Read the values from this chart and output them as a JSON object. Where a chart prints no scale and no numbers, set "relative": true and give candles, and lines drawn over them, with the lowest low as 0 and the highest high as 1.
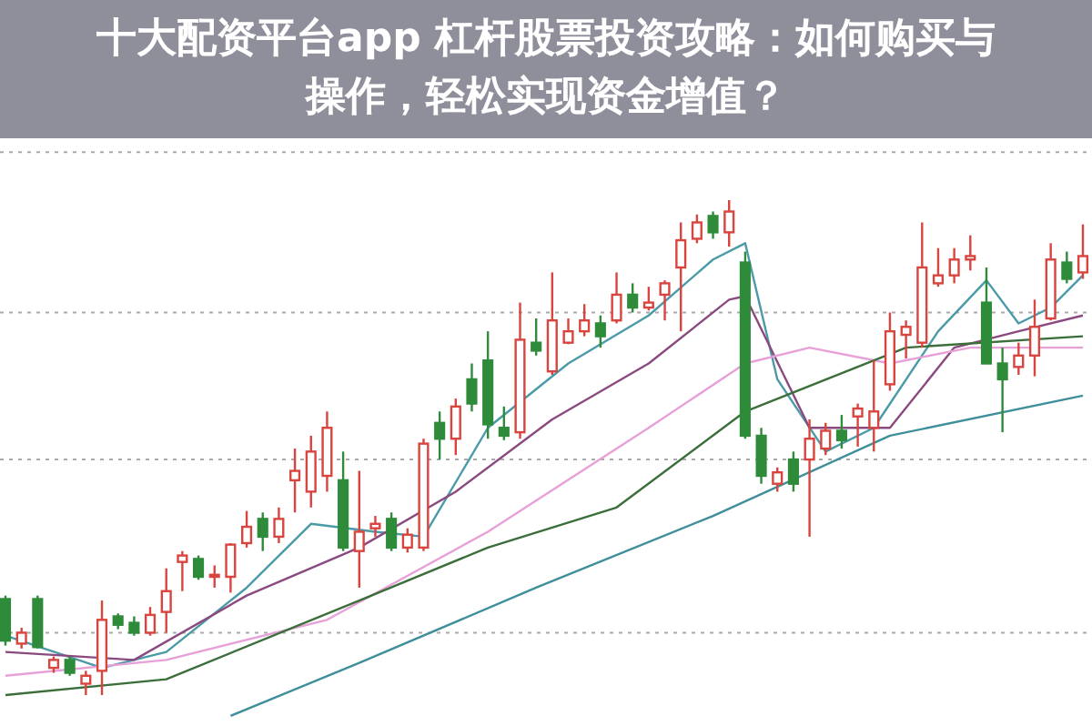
{
  "chart_data": {
    "type": "candlestick",
    "relative": true,
    "title": "十大配资平台app 杠杆股票投资攻略：如何购买与操作，轻松实现资金增值？",
    "categories": [
      null,
      null,
      null,
      null,
      null,
      null,
      null,
      null,
      null,
      null,
      null,
      null,
      null,
      null,
      null,
      null,
      null,
      null,
      null,
      null,
      null,
      null,
      null,
      null,
      null,
      null,
      null,
      null,
      null,
      null,
      null,
      null,
      null,
      null,
      null,
      null,
      null,
      null,
      null,
      null,
      null,
      null,
      null,
      null,
      null,
      null,
      null,
      null,
      null,
      null,
      null,
      null,
      null,
      null,
      null,
      null,
      null,
      null,
      null,
      null,
      null,
      null,
      null,
      null,
      null,
      null,
      null,
      null
    ],
    "ohlc": [
      [
        0.194,
        0.201,
        0.1,
        0.11
      ],
      [
        0.104,
        0.136,
        0.094,
        0.126
      ],
      [
        0.194,
        0.201,
        0.094,
        0.097
      ],
      [
        0.055,
        0.078,
        0.045,
        0.071
      ],
      [
        0.071,
        0.078,
        0.039,
        0.045
      ],
      [
        0.023,
        0.049,
        0,
        0.039
      ],
      [
        0.049,
        0.191,
        0,
        0.152
      ],
      [
        0.159,
        0.165,
        0.133,
        0.142
      ],
      [
        0.146,
        0.159,
        0.12,
        0.126
      ],
      [
        0.126,
        0.178,
        0.12,
        0.162
      ],
      [
        0.168,
        0.256,
        0.126,
        0.21
      ],
      [
        0.269,
        0.291,
        0.21,
        0.282
      ],
      [
        0.275,
        0.282,
        0.233,
        0.239
      ],
      [
        0.239,
        0.262,
        0.217,
        0.243
      ],
      [
        0.239,
        0.307,
        0.207,
        0.304
      ],
      [
        0.307,
        0.372,
        0.298,
        0.34
      ],
      [
        0.356,
        0.369,
        0.291,
        0.32
      ],
      [
        0.32,
        0.379,
        0.307,
        0.356
      ],
      [
        0.434,
        0.498,
        0.369,
        0.453
      ],
      [
        0.411,
        0.524,
        0.379,
        0.492
      ],
      [
        0.443,
        0.573,
        0.411,
        0.54
      ],
      [
        0.434,
        0.492,
        0.291,
        0.298
      ],
      [
        0.291,
        0.453,
        0.217,
        0.33
      ],
      [
        0.337,
        0.362,
        0.32,
        0.346
      ],
      [
        0.356,
        0.369,
        0.291,
        0.298
      ],
      [
        0.298,
        0.337,
        0.288,
        0.324
      ],
      [
        0.298,
        0.518,
        0.291,
        0.508
      ],
      [
        0.55,
        0.573,
        0.476,
        0.518
      ],
      [
        0.518,
        0.599,
        0.485,
        0.583
      ],
      [
        0.638,
        0.67,
        0.573,
        0.589
      ],
      [
        0.676,
        0.735,
        0.518,
        0.547
      ],
      [
        0.54,
        0.583,
        0.515,
        0.524
      ],
      [
        0.531,
        0.793,
        0.518,
        0.718
      ],
      [
        0.712,
        0.761,
        0.686,
        0.696
      ],
      [
        0.654,
        0.854,
        0.647,
        0.757
      ],
      [
        0.712,
        0.761,
        0.709,
        0.735
      ],
      [
        0.735,
        0.79,
        0.725,
        0.757
      ],
      [
        0.751,
        0.767,
        0.702,
        0.725
      ],
      [
        0.757,
        0.854,
        0.751,
        0.809
      ],
      [
        0.809,
        0.832,
        0.773,
        0.783
      ],
      [
        0.783,
        0.825,
        0.777,
        0.793
      ],
      [
        0.809,
        0.838,
        0.757,
        0.832
      ],
      [
        0.864,
        0.955,
        0.735,
        0.919
      ],
      [
        0.922,
        0.971,
        0.913,
        0.955
      ],
      [
        0.968,
        0.977,
        0.922,
        0.935
      ],
      [
        0.935,
        1,
        0.906,
        0.977
      ],
      [
        0.874,
        0.896,
        0.518,
        0.524
      ],
      [
        0.524,
        0.54,
        0.427,
        0.443
      ],
      [
        0.427,
        0.46,
        0.411,
        0.45
      ],
      [
        0.476,
        0.492,
        0.411,
        0.427
      ],
      [
        0.476,
        0.557,
        0.32,
        0.518
      ],
      [
        0.498,
        0.55,
        0.485,
        0.534
      ],
      [
        0.534,
        0.566,
        0.498,
        0.515
      ],
      [
        0.563,
        0.589,
        0.502,
        0.579
      ],
      [
        0.54,
        0.676,
        0.492,
        0.573
      ],
      [
        0.628,
        0.773,
        0.615,
        0.735
      ],
      [
        0.728,
        0.757,
        0.68,
        0.744
      ],
      [
        0.712,
        0.955,
        0.702,
        0.864
      ],
      [
        0.832,
        0.903,
        0.825,
        0.848
      ],
      [
        0.848,
        0.903,
        0.832,
        0.88
      ],
      [
        0.88,
        0.929,
        0.858,
        0.887
      ],
      [
        0.793,
        0.864,
        0.67,
        0.67
      ],
      [
        0.67,
        0.702,
        0.531,
        0.638
      ],
      [
        0.663,
        0.712,
        0.647,
        0.686
      ],
      [
        0.686,
        0.799,
        0.644,
        0.744
      ],
      [
        0.761,
        0.913,
        0.757,
        0.88
      ],
      [
        0.874,
        0.896,
        0.832,
        0.841
      ],
      [
        0.854,
        0.951,
        0.841,
        0.887
      ]
    ],
    "series": [
      {
        "type": "line",
        "color": "#4a9aa8",
        "values": [
          0.12,
          null,
          null,
          null,
          null,
          null,
          0.055,
          null,
          null,
          null,
          0.087,
          null,
          null,
          null,
          null,
          0.217,
          null,
          null,
          null,
          0.346,
          null,
          null,
          null,
          0.33,
          null,
          null,
          0.32,
          null,
          null,
          null,
          0.54,
          null,
          null,
          null,
          null,
          0.67,
          null,
          null,
          null,
          null,
          0.767,
          null,
          null,
          null,
          0.88,
          null,
          0.913,
          null,
          0.638,
          null,
          null,
          0.492,
          null,
          null,
          0.54,
          null,
          null,
          null,
          0.735,
          null,
          null,
          0.838,
          null,
          0.751,
          null,
          0.783,
          null,
          0.848
        ]
      },
      {
        "type": "line",
        "color": "#8a4a80",
        "values": [
          0.087,
          null,
          null,
          null,
          null,
          null,
          null,
          null,
          0.071,
          null,
          null,
          null,
          null,
          null,
          null,
          0.201,
          null,
          null,
          null,
          null,
          null,
          null,
          0.298,
          null,
          null,
          null,
          null,
          null,
          0.411,
          null,
          null,
          null,
          null,
          null,
          0.557,
          null,
          null,
          null,
          null,
          null,
          0.67,
          null,
          null,
          null,
          null,
          0.799,
          0.806,
          null,
          null,
          null,
          0.54,
          null,
          null,
          null,
          null,
          0.54,
          null,
          null,
          null,
          0.702,
          null,
          null,
          null,
          0.735,
          null,
          null,
          null,
          0.767
        ]
      },
      {
        "type": "line",
        "color": "#e8a0d8",
        "values": [
          0.039,
          null,
          null,
          null,
          null,
          null,
          null,
          null,
          null,
          null,
          0.071,
          null,
          null,
          null,
          null,
          null,
          null,
          null,
          null,
          null,
          0.152,
          null,
          null,
          null,
          null,
          null,
          null,
          null,
          null,
          null,
          0.33,
          null,
          null,
          null,
          null,
          null,
          null,
          null,
          null,
          null,
          0.54,
          null,
          null,
          null,
          null,
          null,
          0.67,
          null,
          null,
          null,
          0.702,
          null,
          null,
          null,
          null,
          0.67,
          null,
          null,
          null,
          null,
          0.702,
          null,
          null,
          null,
          null,
          null,
          null,
          0.702
        ]
      },
      {
        "type": "line",
        "color": "#3b6e3b",
        "values": [
          0,
          null,
          null,
          null,
          null,
          null,
          null,
          null,
          null,
          null,
          0.032,
          null,
          null,
          null,
          null,
          null,
          null,
          null,
          null,
          null,
          null,
          null,
          0.191,
          null,
          null,
          null,
          null,
          null,
          null,
          null,
          0.298,
          null,
          null,
          null,
          null,
          null,
          null,
          null,
          0.379,
          null,
          null,
          null,
          null,
          null,
          null,
          null,
          0.573,
          null,
          null,
          null,
          null,
          null,
          null,
          null,
          null,
          null,
          0.702,
          null,
          null,
          null,
          null,
          null,
          null,
          null,
          null,
          null,
          null,
          0.725
        ]
      },
      {
        "type": "line",
        "color": "#3f8f9a",
        "values": [
          null,
          null,
          null,
          null,
          null,
          null,
          null,
          null,
          null,
          null,
          null,
          null,
          null,
          null,
          -0.042,
          null,
          null,
          null,
          null,
          null,
          null,
          null,
          0.065,
          null,
          null,
          null,
          null,
          null,
          null,
          null,
          null,
          null,
          null,
          0.217,
          null,
          null,
          null,
          null,
          null,
          null,
          null,
          null,
          null,
          null,
          0.362,
          null,
          null,
          null,
          null,
          null,
          null,
          null,
          null,
          null,
          null,
          0.524,
          null,
          null,
          null,
          null,
          null,
          null,
          null,
          null,
          null,
          null,
          null,
          0.605
        ]
      }
    ],
    "ref_lines": [
      {
        "axis": "y",
        "value": 1.097,
        "color": "#aaaaaa",
        "line_style": "dotted"
      },
      {
        "axis": "y",
        "value": 0.773,
        "color": "#aaaaaa",
        "line_style": "dotted"
      },
      {
        "axis": "y",
        "value": 0.476,
        "color": "#aaaaaa",
        "line_style": "dotted"
      },
      {
        "axis": "y",
        "value": 0.126,
        "color": "#aaaaaa",
        "line_style": "dotted"
      }
    ]
  }
}
